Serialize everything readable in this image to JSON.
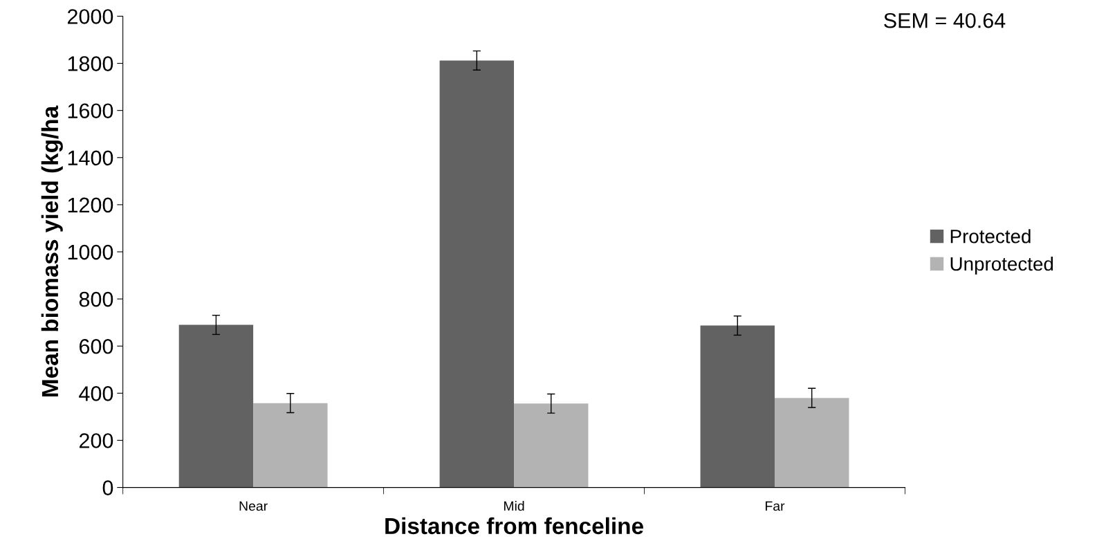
{
  "chart_data": {
    "type": "bar",
    "xlabel": "Distance from fenceline",
    "ylabel": "Mean biomass yield (kg/ha",
    "categories": [
      "Near",
      "Mid",
      "Far"
    ],
    "series": [
      {
        "name": "Protected",
        "color": "#626262",
        "values": [
          690,
          1812,
          687
        ],
        "errors": [
          40.64,
          40.64,
          40.64
        ]
      },
      {
        "name": "Unprotected",
        "color": "#b3b3b3",
        "values": [
          358,
          356,
          380
        ],
        "errors": [
          40.64,
          40.64,
          40.64
        ]
      }
    ],
    "ylim": [
      0,
      2000
    ],
    "yticks": [
      0,
      200,
      400,
      600,
      800,
      1000,
      1200,
      1400,
      1600,
      1800,
      2000
    ],
    "annotations": [
      "SEM = 40.64"
    ],
    "legend": "right",
    "grid": false
  }
}
